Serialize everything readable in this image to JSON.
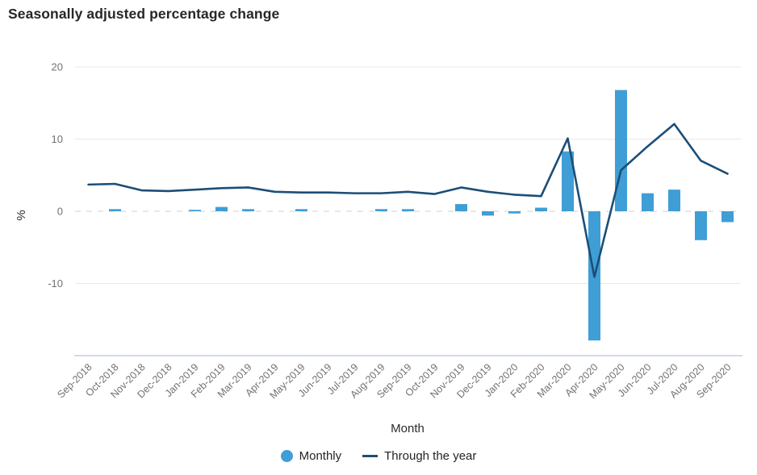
{
  "chart_data": {
    "type": "bar",
    "subtype": "bar+line combo",
    "title": "Seasonally adjusted percentage change",
    "xlabel": "Month",
    "ylabel": "%",
    "ylim": [
      -20,
      20
    ],
    "yticks": [
      20,
      10,
      0,
      -10
    ],
    "grid": true,
    "legend_position": "bottom",
    "categories": [
      "Sep-2018",
      "Oct-2018",
      "Nov-2018",
      "Dec-2018",
      "Jan-2019",
      "Feb-2019",
      "Mar-2019",
      "Apr-2019",
      "May-2019",
      "Jun-2019",
      "Jul-2019",
      "Aug-2019",
      "Sep-2019",
      "Oct-2019",
      "Nov-2019",
      "Dec-2019",
      "Jan-2020",
      "Feb-2020",
      "Mar-2020",
      "Apr-2020",
      "May-2020",
      "Jun-2020",
      "Jul-2020",
      "Aug-2020",
      "Sep-2020"
    ],
    "series": [
      {
        "name": "Monthly",
        "type": "bar",
        "color": "#3f9ed6",
        "values": [
          0,
          0.3,
          0,
          0,
          0.2,
          0.6,
          0.3,
          0,
          0.3,
          0,
          0,
          0.3,
          0.3,
          0,
          1.0,
          -0.6,
          -0.3,
          0.5,
          8.3,
          -17.9,
          16.8,
          2.5,
          3.0,
          -4.0,
          -1.5
        ]
      },
      {
        "name": "Through the year",
        "type": "line",
        "color": "#1c4e77",
        "values": [
          3.7,
          3.8,
          2.9,
          2.8,
          3.0,
          3.2,
          3.3,
          2.7,
          2.6,
          2.6,
          2.5,
          2.5,
          2.7,
          2.4,
          3.3,
          2.7,
          2.3,
          2.1,
          10.1,
          -9.1,
          5.7,
          9.0,
          12.1,
          7.0,
          5.2
        ]
      }
    ],
    "colors": {
      "gridline": "#e9e9e9",
      "zero_line": "#d2d2d2",
      "axis_line": "#bdd0e2",
      "tick_label": "#757070"
    }
  }
}
